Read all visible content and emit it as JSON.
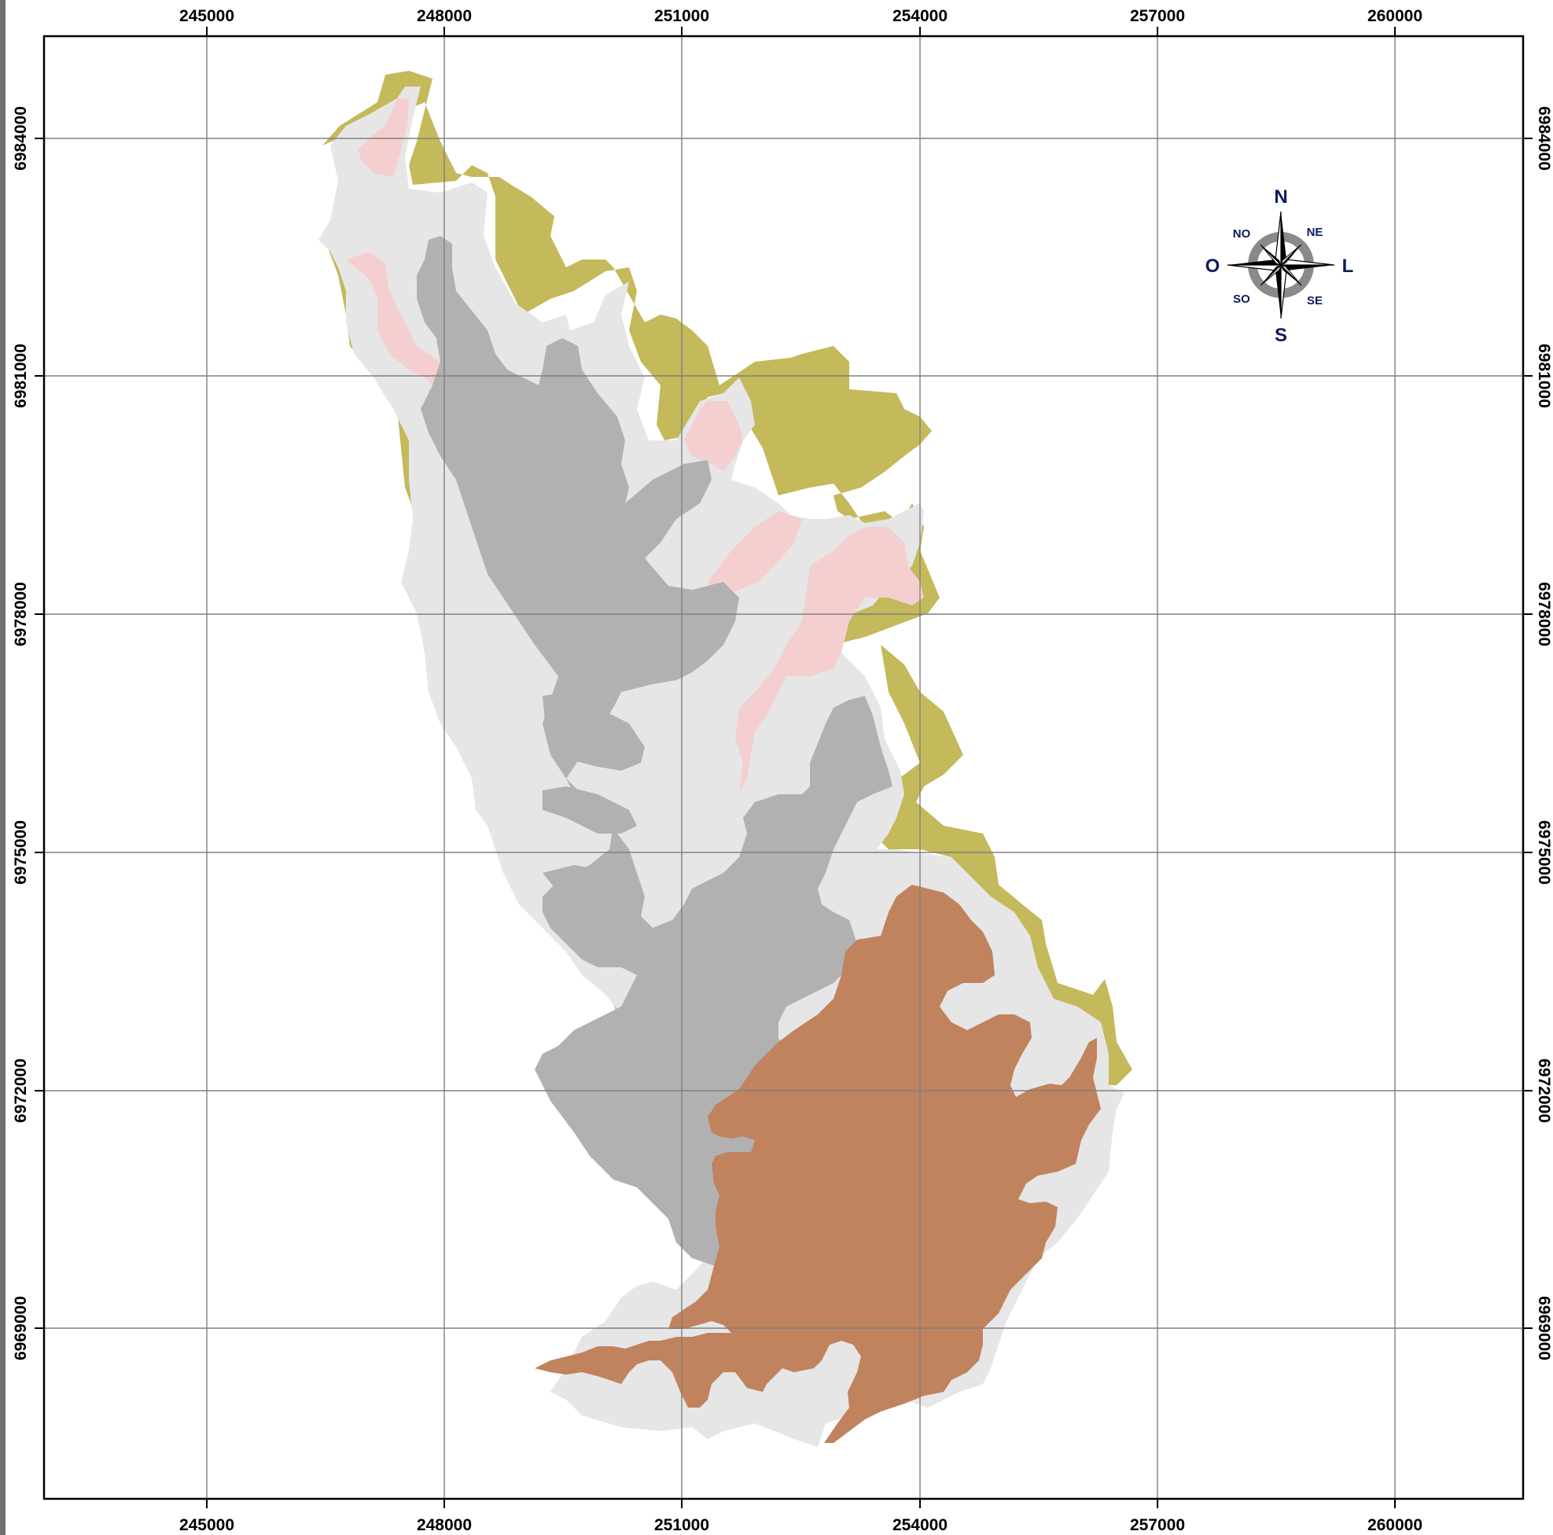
{
  "map": {
    "x_ticks": [
      "245000",
      "248000",
      "251000",
      "254000",
      "257000",
      "260000"
    ],
    "y_ticks": [
      "6984000",
      "6981000",
      "6978000",
      "6975000",
      "6972000",
      "6969000"
    ]
  },
  "compass": {
    "n": "N",
    "ne": "NE",
    "l": "L",
    "se": "SE",
    "s": "S",
    "so": "SO",
    "o": "O",
    "no": "NO"
  },
  "colors": {
    "olive_zone": "#c4b95b",
    "light_gray_zone": "#e6e6e6",
    "dark_gray_zone": "#b1b1b1",
    "pink_zone": "#f5cfcf",
    "brown_zone": "#c0835e",
    "grid": "#808080",
    "compass_text": "#0d1a5c"
  }
}
